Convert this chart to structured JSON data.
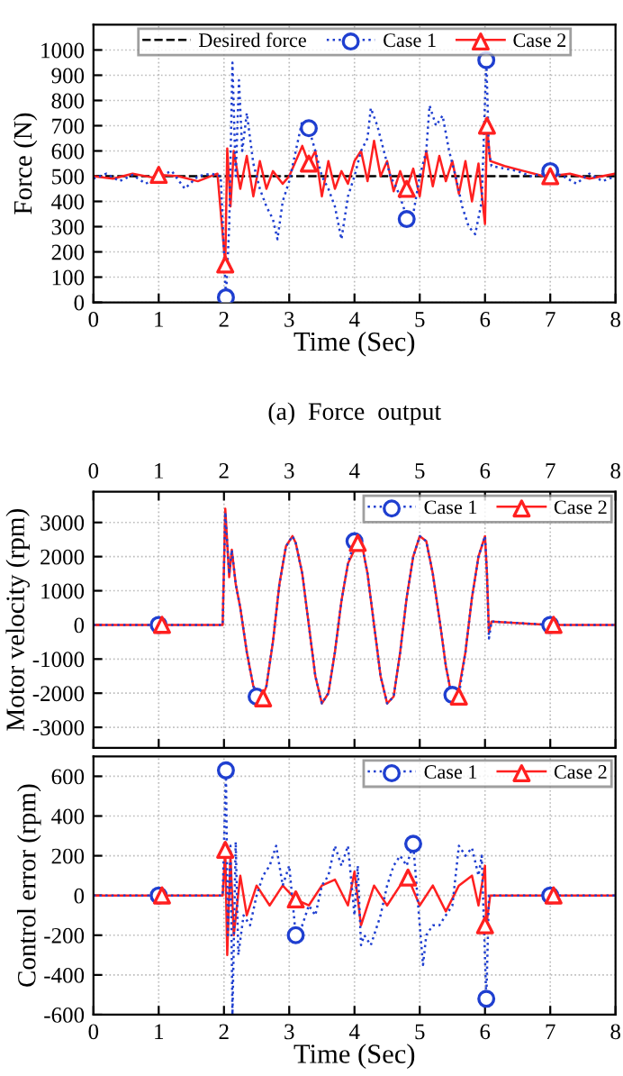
{
  "chart_data": [
    {
      "type": "line",
      "xlabel": "Time (Sec)",
      "ylabel": "Force (N)",
      "xlim": [
        0,
        8
      ],
      "xticks": [
        0,
        1,
        2,
        3,
        4,
        5,
        6,
        7,
        8
      ],
      "ylim": [
        0,
        1100
      ],
      "yticks": [
        0,
        100,
        200,
        300,
        400,
        500,
        600,
        700,
        800,
        900,
        1000
      ],
      "grid": true,
      "legend": "top",
      "annotations": [
        "(a)  Force  output"
      ],
      "series": [
        {
          "name": "Desired force",
          "color": "#000000",
          "line_style": "dashed",
          "marker": "none",
          "x": [
            0,
            8
          ],
          "values": [
            500,
            500
          ]
        },
        {
          "name": "Case 1",
          "color": "#1f3fd0",
          "line_style": "dotted",
          "x": [
            0,
            0.2,
            0.4,
            0.6,
            0.8,
            1.0,
            1.2,
            1.4,
            1.6,
            1.8,
            1.95,
            2.03,
            2.08,
            2.13,
            2.18,
            2.23,
            2.28,
            2.35,
            2.45,
            2.55,
            2.65,
            2.75,
            2.82,
            2.9,
            3.0,
            3.1,
            3.2,
            3.3,
            3.4,
            3.5,
            3.6,
            3.7,
            3.8,
            3.9,
            4.0,
            4.1,
            4.2,
            4.25,
            4.35,
            4.45,
            4.55,
            4.65,
            4.75,
            4.8,
            4.9,
            5.0,
            5.1,
            5.15,
            5.25,
            5.35,
            5.45,
            5.55,
            5.65,
            5.75,
            5.85,
            5.95,
            6.02,
            6.06,
            6.1,
            6.3,
            6.5,
            6.7,
            6.9,
            7.0,
            7.2,
            7.4,
            7.6,
            7.8,
            8.0
          ],
          "values": [
            490,
            510,
            480,
            505,
            470,
            500,
            520,
            450,
            500,
            510,
            500,
            20,
            300,
            950,
            500,
            880,
            600,
            750,
            550,
            450,
            380,
            330,
            250,
            400,
            480,
            600,
            720,
            690,
            600,
            500,
            450,
            380,
            250,
            420,
            500,
            600,
            650,
            770,
            700,
            600,
            500,
            450,
            380,
            330,
            350,
            500,
            600,
            780,
            700,
            740,
            600,
            500,
            380,
            300,
            270,
            400,
            960,
            600,
            540,
            530,
            520,
            500,
            510,
            520,
            500,
            470,
            510,
            480,
            500
          ]
        },
        {
          "type": "scatter",
          "color": "#1f3fd0",
          "marker": "circle",
          "x": [
            2.03,
            3.3,
            4.8,
            6.02,
            7.0
          ],
          "values": [
            20,
            690,
            330,
            960,
            520
          ]
        },
        {
          "name": "Case 2",
          "color": "#ff2020",
          "line_style": "solid",
          "x": [
            0,
            0.3,
            0.6,
            0.9,
            1.0,
            1.3,
            1.6,
            1.9,
            2.02,
            2.05,
            2.1,
            2.15,
            2.25,
            2.35,
            2.45,
            2.55,
            2.65,
            2.75,
            2.9,
            3.0,
            3.1,
            3.2,
            3.3,
            3.4,
            3.5,
            3.6,
            3.7,
            3.8,
            3.9,
            4.0,
            4.1,
            4.2,
            4.3,
            4.4,
            4.5,
            4.6,
            4.7,
            4.8,
            4.9,
            5.0,
            5.1,
            5.2,
            5.3,
            5.4,
            5.5,
            5.6,
            5.7,
            5.8,
            5.9,
            6.0,
            6.03,
            6.08,
            6.3,
            6.6,
            6.9,
            7.0,
            7.3,
            7.6,
            8.0
          ],
          "values": [
            500,
            490,
            510,
            495,
            505,
            500,
            480,
            510,
            150,
            610,
            380,
            600,
            450,
            580,
            420,
            560,
            450,
            520,
            470,
            500,
            560,
            620,
            550,
            600,
            420,
            560,
            450,
            520,
            470,
            560,
            600,
            480,
            640,
            500,
            560,
            440,
            520,
            450,
            530,
            420,
            600,
            460,
            580,
            480,
            560,
            430,
            560,
            400,
            550,
            310,
            700,
            560,
            540,
            520,
            500,
            500,
            510,
            490,
            510
          ]
        },
        {
          "type": "scatter",
          "color": "#ff2020",
          "marker": "triangle",
          "x": [
            1.0,
            2.02,
            3.3,
            4.8,
            6.03,
            7.0
          ],
          "values": [
            505,
            150,
            550,
            450,
            700,
            500
          ]
        }
      ]
    },
    {
      "type": "line",
      "ylabel": "Motor velocity (rpm)",
      "xlim": [
        0,
        8
      ],
      "xticks": [
        0,
        1,
        2,
        3,
        4,
        5,
        6,
        7,
        8
      ],
      "ylim": [
        -3600,
        3900
      ],
      "yticks": [
        -3000,
        -2000,
        -1000,
        0,
        1000,
        2000,
        3000
      ],
      "grid": true,
      "legend": "top right",
      "series": [
        {
          "name": "Case 1",
          "color": "#1f3fd0",
          "line_style": "dotted",
          "x": [
            0,
            1,
            1.98,
            2.02,
            2.08,
            2.12,
            2.18,
            2.25,
            2.35,
            2.45,
            2.55,
            2.65,
            2.75,
            2.85,
            2.95,
            3.05,
            3.1,
            3.2,
            3.3,
            3.4,
            3.5,
            3.6,
            3.7,
            3.8,
            3.9,
            4.0,
            4.1,
            4.2,
            4.3,
            4.4,
            4.5,
            4.6,
            4.7,
            4.8,
            4.9,
            5.0,
            5.1,
            5.2,
            5.3,
            5.4,
            5.5,
            5.6,
            5.7,
            5.8,
            5.9,
            6.0,
            6.03,
            6.06,
            6.1,
            7,
            8
          ],
          "values": [
            0,
            0,
            0,
            3300,
            1500,
            2200,
            1200,
            500,
            -800,
            -1800,
            -2100,
            -1800,
            -500,
            1200,
            2300,
            2600,
            2400,
            1500,
            0,
            -1500,
            -2300,
            -2000,
            -800,
            700,
            1800,
            2450,
            2500,
            1500,
            0,
            -1500,
            -2300,
            -2100,
            -800,
            800,
            2000,
            2600,
            2450,
            1500,
            200,
            -1200,
            -2200,
            -2050,
            -800,
            800,
            2000,
            2600,
            1500,
            -400,
            100,
            0,
            0
          ]
        },
        {
          "type": "scatter",
          "color": "#1f3fd0",
          "marker": "circle",
          "x": [
            1,
            2.5,
            4.0,
            5.5,
            7
          ],
          "values": [
            0,
            -2100,
            2450,
            -2050,
            0
          ]
        },
        {
          "name": "Case 2",
          "color": "#ff2020",
          "line_style": "solid",
          "x": [
            0,
            1,
            1.98,
            2.02,
            2.08,
            2.12,
            2.18,
            2.25,
            2.35,
            2.45,
            2.58,
            2.65,
            2.75,
            2.85,
            2.95,
            3.05,
            3.1,
            3.2,
            3.3,
            3.4,
            3.5,
            3.6,
            3.7,
            3.8,
            3.9,
            4.05,
            4.1,
            4.2,
            4.3,
            4.4,
            4.5,
            4.6,
            4.7,
            4.8,
            4.9,
            5.0,
            5.1,
            5.2,
            5.3,
            5.4,
            5.5,
            5.58,
            5.7,
            5.8,
            5.9,
            6.0,
            6.03,
            6.06,
            6.1,
            7,
            8
          ],
          "values": [
            0,
            0,
            0,
            3400,
            1400,
            2200,
            1200,
            500,
            -800,
            -1800,
            -2150,
            -1800,
            -500,
            1200,
            2300,
            2600,
            2400,
            1500,
            0,
            -1500,
            -2300,
            -2000,
            -800,
            700,
            1800,
            2400,
            2500,
            1500,
            0,
            -1500,
            -2300,
            -2100,
            -800,
            800,
            2000,
            2600,
            2450,
            1500,
            200,
            -1200,
            -2200,
            -2100,
            -800,
            800,
            2000,
            2600,
            1500,
            -200,
            100,
            0,
            0
          ]
        },
        {
          "type": "scatter",
          "color": "#ff2020",
          "marker": "triangle",
          "x": [
            1.05,
            2.6,
            4.05,
            5.6,
            7.05
          ],
          "values": [
            0,
            -2150,
            2400,
            -2100,
            0
          ]
        }
      ]
    },
    {
      "type": "line",
      "xlabel": "Time (Sec)",
      "ylabel": "Control error (rpm)",
      "xlim": [
        0,
        8
      ],
      "xticks": [
        0,
        1,
        2,
        3,
        4,
        5,
        6,
        7,
        8
      ],
      "ylim": [
        -600,
        700
      ],
      "yticks": [
        -600,
        -400,
        -200,
        0,
        200,
        400,
        600
      ],
      "grid": true,
      "legend": "top right",
      "series": [
        {
          "name": "Case 1",
          "color": "#1f3fd0",
          "line_style": "dotted",
          "x": [
            0,
            1,
            1.98,
            2.03,
            2.06,
            2.1,
            2.13,
            2.18,
            2.22,
            2.3,
            2.4,
            2.5,
            2.6,
            2.7,
            2.8,
            2.9,
            3.0,
            3.1,
            3.2,
            3.3,
            3.4,
            3.5,
            3.6,
            3.7,
            3.8,
            3.9,
            4.0,
            4.05,
            4.1,
            4.15,
            4.25,
            4.4,
            4.5,
            4.6,
            4.7,
            4.8,
            4.9,
            5.0,
            5.05,
            5.1,
            5.2,
            5.3,
            5.4,
            5.5,
            5.6,
            5.7,
            5.8,
            5.9,
            5.95,
            6.02,
            6.06,
            6.2,
            7,
            8
          ],
          "values": [
            0,
            0,
            0,
            630,
            -200,
            250,
            -600,
            270,
            -300,
            -100,
            -150,
            0,
            100,
            150,
            250,
            50,
            150,
            -200,
            -150,
            -50,
            -100,
            50,
            100,
            250,
            150,
            250,
            -100,
            150,
            -250,
            -200,
            -250,
            -100,
            50,
            150,
            200,
            150,
            260,
            -150,
            -350,
            -200,
            -150,
            -150,
            -100,
            -50,
            250,
            200,
            240,
            100,
            200,
            -520,
            0,
            0,
            0,
            0
          ]
        },
        {
          "type": "scatter",
          "color": "#1f3fd0",
          "marker": "circle",
          "x": [
            1,
            2.03,
            3.1,
            4.9,
            6.02,
            7
          ],
          "values": [
            0,
            630,
            -200,
            260,
            -520,
            0
          ]
        },
        {
          "name": "Case 2",
          "color": "#ff2020",
          "line_style": "solid",
          "x": [
            0,
            1,
            1.98,
            2.02,
            2.05,
            2.1,
            2.15,
            2.25,
            2.35,
            2.5,
            2.7,
            2.9,
            3.1,
            3.3,
            3.5,
            3.7,
            3.9,
            4.0,
            4.1,
            4.3,
            4.5,
            4.7,
            4.82,
            5.0,
            5.2,
            5.4,
            5.6,
            5.8,
            5.9,
            6.0,
            6.02,
            6.08,
            7,
            8
          ],
          "values": [
            0,
            0,
            0,
            230,
            -300,
            200,
            -200,
            100,
            -100,
            50,
            -50,
            50,
            -20,
            -50,
            50,
            80,
            -50,
            120,
            -150,
            50,
            -50,
            50,
            90,
            -50,
            50,
            -80,
            50,
            100,
            -50,
            150,
            -150,
            0,
            0,
            0
          ]
        },
        {
          "type": "scatter",
          "color": "#ff2020",
          "marker": "triangle",
          "x": [
            1.05,
            2.02,
            3.1,
            4.82,
            6.0,
            7.05
          ],
          "values": [
            0,
            230,
            -20,
            90,
            -150,
            0
          ]
        }
      ]
    }
  ]
}
